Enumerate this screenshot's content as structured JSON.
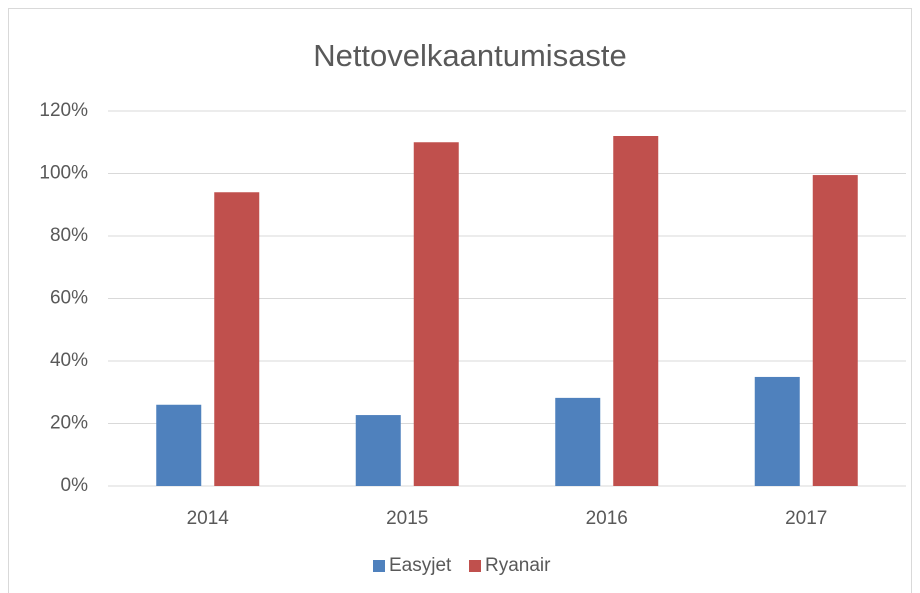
{
  "chart_data": {
    "type": "bar",
    "title": "Nettovelkaantumisaste",
    "categories": [
      "2014",
      "2015",
      "2016",
      "2017"
    ],
    "series": [
      {
        "name": "Easyjet",
        "color": "#4f81bd",
        "values": [
          26,
          22.7,
          28.2,
          34.9
        ]
      },
      {
        "name": "Ryanair",
        "color": "#c0504d",
        "values": [
          94,
          110,
          112,
          99.5
        ]
      }
    ],
    "ylim": [
      0,
      120
    ],
    "yticks": [
      {
        "value": 0,
        "label": "0%"
      },
      {
        "value": 20,
        "label": "20%"
      },
      {
        "value": 40,
        "label": "40%"
      },
      {
        "value": 60,
        "label": "60%"
      },
      {
        "value": 80,
        "label": "80%"
      },
      {
        "value": 100,
        "label": "100%"
      },
      {
        "value": 120,
        "label": "120%"
      }
    ],
    "grid": true,
    "legend": "bottom"
  }
}
